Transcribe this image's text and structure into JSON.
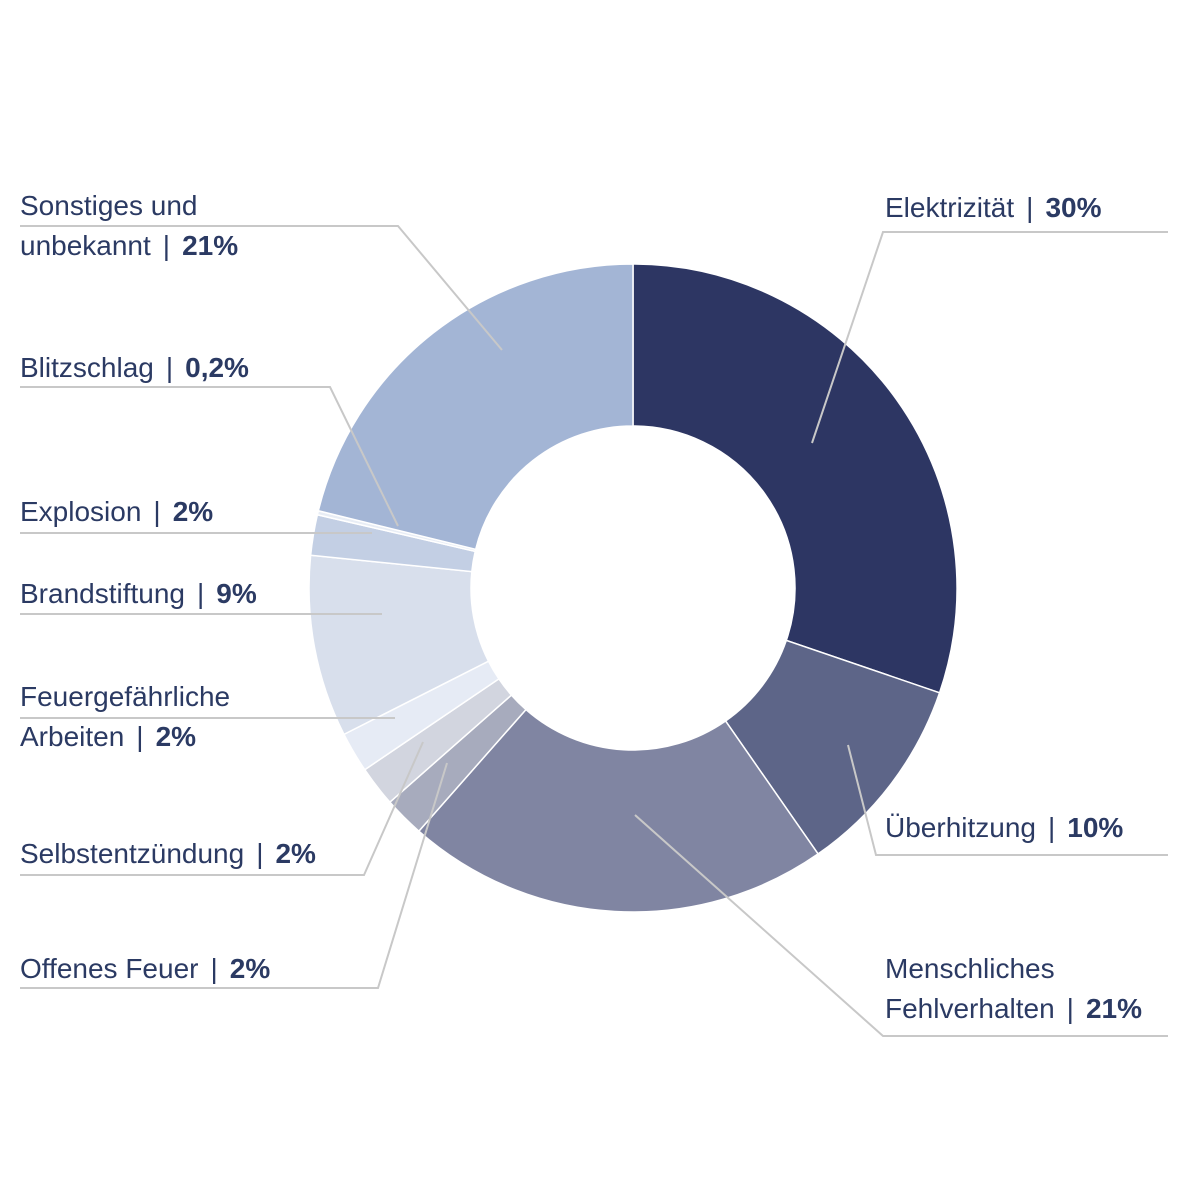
{
  "chart_data": {
    "type": "pie",
    "subtype": "donut",
    "title": "",
    "unit": "%",
    "separator": "|",
    "slices": [
      {
        "key": "elektrizitaet",
        "label_lines": [
          "Elektrizität"
        ],
        "pct_label": "30%",
        "value": 30,
        "color": "#2d3663"
      },
      {
        "key": "ueberhitzung",
        "label_lines": [
          "Überhitzung"
        ],
        "pct_label": "10%",
        "value": 10,
        "color": "#5d6588"
      },
      {
        "key": "menschliches",
        "label_lines": [
          "Menschliches",
          "Fehlverhalten"
        ],
        "pct_label": "21%",
        "value": 21,
        "color": "#8085a2"
      },
      {
        "key": "offenes",
        "label_lines": [
          "Offenes Feuer"
        ],
        "pct_label": "2%",
        "value": 2,
        "color": "#a7abbd"
      },
      {
        "key": "selbst",
        "label_lines": [
          "Selbstentzündung"
        ],
        "pct_label": "2%",
        "value": 2,
        "color": "#d2d5df"
      },
      {
        "key": "feuer",
        "label_lines": [
          "Feuergefährliche",
          "Arbeiten"
        ],
        "pct_label": "2%",
        "value": 2,
        "color": "#e6ebf5"
      },
      {
        "key": "brand",
        "label_lines": [
          "Brandstiftung"
        ],
        "pct_label": "9%",
        "value": 9,
        "color": "#d8dfec"
      },
      {
        "key": "explosion",
        "label_lines": [
          "Explosion"
        ],
        "pct_label": "2%",
        "value": 2,
        "color": "#c3cfe4"
      },
      {
        "key": "blitz",
        "label_lines": [
          "Blitzschlag"
        ],
        "pct_label": "0,2%",
        "value": 0.2,
        "color": "#e8edf5"
      },
      {
        "key": "sonstiges",
        "label_lines": [
          "Sonstiges und",
          "unbekannt"
        ],
        "pct_label": "21%",
        "value": 21,
        "color": "#a3b5d5"
      }
    ]
  }
}
